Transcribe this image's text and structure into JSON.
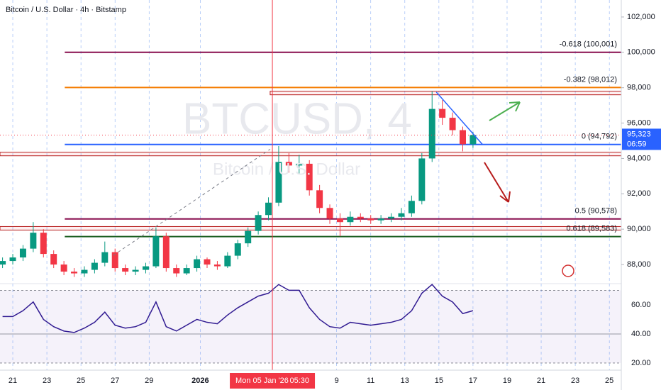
{
  "chart_data": {
    "type": "candlestick",
    "title": "Bitcoin / U.S. Dollar · 4h · Bitstamp",
    "watermark": "BTCUSD, 4",
    "watermark_subtitle": "Bitcoin / U.S. Dollar",
    "up_color": "#089981",
    "down_color": "#f23645",
    "t": [
      -0.6,
      0,
      0.6,
      1.2,
      1.8,
      2.4,
      3.0,
      3.6,
      4.2,
      4.8,
      5.4,
      6.0,
      6.6,
      7.2,
      7.8,
      8.4,
      9.0,
      9.6,
      10.2,
      10.8,
      11.4,
      12.0,
      12.6,
      13.2,
      13.8,
      14.4,
      15.0,
      15.6,
      16.2,
      16.8,
      17.4,
      18.0,
      18.6,
      19.2,
      19.8,
      20.4,
      21.0,
      21.6,
      22.2,
      22.8,
      23.4,
      24.0,
      24.6,
      25.2,
      25.8,
      26.4,
      27.0
    ],
    "open": [
      88000,
      88200,
      88400,
      88900,
      89800,
      88600,
      88000,
      87600,
      87500,
      87700,
      88100,
      88700,
      87800,
      87600,
      87700,
      87900,
      89600,
      87800,
      87500,
      87800,
      88300,
      88000,
      87900,
      88500,
      89200,
      89900,
      90800,
      91500,
      93800,
      93600,
      93700,
      92200,
      91200,
      90600,
      90400,
      90700,
      90600,
      90500,
      90600,
      90700,
      90900,
      91600,
      94000,
      96800,
      96300,
      95600,
      94800
    ],
    "high": [
      88400,
      88600,
      89100,
      90400,
      90000,
      88800,
      88200,
      87800,
      87900,
      88300,
      89300,
      88900,
      88000,
      87900,
      88100,
      90100,
      89800,
      88000,
      88000,
      88500,
      88400,
      88200,
      88700,
      89400,
      90100,
      91000,
      91800,
      94700,
      94300,
      94200,
      93900,
      92500,
      91400,
      90900,
      91000,
      90900,
      90800,
      90800,
      90900,
      91200,
      91900,
      94300,
      97800,
      97300,
      96600,
      95800,
      95500
    ],
    "low": [
      87800,
      88000,
      88200,
      88700,
      88400,
      87800,
      87400,
      87300,
      87300,
      87500,
      87900,
      87600,
      87400,
      87400,
      87500,
      87800,
      87600,
      87300,
      87400,
      87600,
      87800,
      87700,
      87800,
      88300,
      89000,
      89700,
      90500,
      91300,
      93200,
      93100,
      91900,
      90900,
      90300,
      89600,
      90200,
      90400,
      90300,
      90300,
      90400,
      90500,
      90700,
      91400,
      93800,
      95900,
      95300,
      94400,
      94600
    ],
    "close": [
      88200,
      88400,
      88900,
      89800,
      88600,
      88000,
      87600,
      87500,
      87700,
      88100,
      88700,
      87800,
      87600,
      87700,
      87900,
      89600,
      87800,
      87500,
      87800,
      88300,
      88000,
      87900,
      88500,
      89200,
      89900,
      90800,
      91500,
      93800,
      93600,
      93700,
      92200,
      91200,
      90600,
      90400,
      90700,
      90600,
      90500,
      90600,
      90700,
      90900,
      91600,
      94000,
      96800,
      96300,
      95600,
      94800,
      95323
    ],
    "rsi": [
      52,
      52,
      56,
      62,
      50,
      45,
      42,
      41,
      44,
      48,
      55,
      46,
      44,
      45,
      48,
      62,
      45,
      42,
      46,
      50,
      48,
      47,
      53,
      58,
      62,
      66,
      68,
      74,
      70,
      70,
      58,
      50,
      45,
      44,
      48,
      47,
      46,
      47,
      48,
      50,
      56,
      68,
      74,
      66,
      62,
      54,
      56
    ],
    "rsi_color": "#311b92",
    "xlim": [
      -0.75,
      35.7
    ],
    "xticks": [
      {
        "value": 0,
        "label": "21"
      },
      {
        "value": 2,
        "label": "23"
      },
      {
        "value": 4,
        "label": "25"
      },
      {
        "value": 6,
        "label": "27"
      },
      {
        "value": 8,
        "label": "29"
      },
      {
        "value": 11,
        "label": "2026"
      },
      {
        "value": 19,
        "label": "9"
      },
      {
        "value": 21,
        "label": "11"
      },
      {
        "value": 23,
        "label": "13"
      },
      {
        "value": 25,
        "label": "15"
      },
      {
        "value": 27,
        "label": "17"
      },
      {
        "value": 29,
        "label": "19"
      },
      {
        "value": 31,
        "label": "21"
      },
      {
        "value": 33,
        "label": "23"
      },
      {
        "value": 35,
        "label": "25"
      }
    ],
    "xgrid": true,
    "ylim": [
      86920,
      102960
    ],
    "yticks": [
      {
        "value": 88000,
        "label": "88,000"
      },
      {
        "value": 90000,
        "label": "90,000"
      },
      {
        "value": 92000,
        "label": "92,000"
      },
      {
        "value": 94000,
        "label": "94,000"
      },
      {
        "value": 96000,
        "label": "96,000"
      },
      {
        "value": 98000,
        "label": "98,000"
      },
      {
        "value": 100000,
        "label": "100,000"
      },
      {
        "value": 102000,
        "label": "102,000"
      }
    ],
    "rsi_ylim": [
      15.1,
      74.6
    ],
    "rsi_yticks": [
      {
        "value": 60,
        "label": "60.00"
      },
      {
        "value": 40,
        "label": "40.00"
      },
      {
        "value": 20,
        "label": "20.00"
      }
    ],
    "rsi_band": [
      20,
      70
    ],
    "fib_start": 3.05,
    "fib_levels": [
      {
        "label": "-0.618 (100,001)",
        "value": 100001,
        "color": "#880e4f"
      },
      {
        "label": "-0.382 (98,012)",
        "value": 98012,
        "color": "#f57c00"
      },
      {
        "label": "0 (94,792)",
        "value": 94792,
        "color": "#2962ff"
      },
      {
        "label": "0.5 (90,578)",
        "value": 90578,
        "color": "#880e4f"
      },
      {
        "label": "0.618 (89,583)",
        "value": 89583,
        "color": "#1b5e20"
      }
    ],
    "zones": [
      {
        "start": -0.75,
        "from": 94150,
        "to": 94350
      },
      {
        "start": 15.1,
        "from": 97600,
        "to": 97800
      },
      {
        "start": -0.75,
        "from": 89950,
        "to": 90150
      }
    ],
    "trend_line": {
      "x": [
        24.85,
        27.55
      ],
      "y": [
        97750,
        94800
      ]
    },
    "fib_connector": {
      "x": [
        5.9,
        15.1
      ],
      "y": [
        88520,
        94520
      ]
    },
    "last_price": {
      "value": 95323,
      "label": "95,323"
    },
    "countdown": "06:59",
    "crosshair": {
      "x": 15.23,
      "label": "Mon 05 Jan '26",
      "time": "05:30"
    }
  }
}
